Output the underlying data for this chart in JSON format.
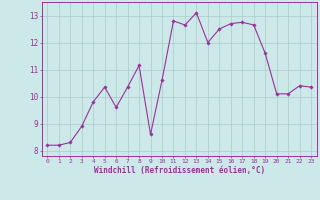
{
  "x": [
    0,
    1,
    2,
    3,
    4,
    5,
    6,
    7,
    8,
    9,
    10,
    11,
    12,
    13,
    14,
    15,
    16,
    17,
    18,
    19,
    20,
    21,
    22,
    23
  ],
  "y": [
    8.2,
    8.2,
    8.3,
    8.9,
    9.8,
    10.35,
    9.6,
    10.35,
    11.15,
    8.6,
    10.6,
    12.8,
    12.65,
    13.1,
    12.0,
    12.5,
    12.7,
    12.75,
    12.65,
    11.6,
    10.1,
    10.1,
    10.4,
    10.35
  ],
  "line_color": "#993399",
  "marker": "D",
  "marker_size": 1.8,
  "bg_color": "#cce8e8",
  "grid_color": "#aacccc",
  "xlabel": "Windchill (Refroidissement éolien,°C)",
  "xlabel_color": "#993399",
  "tick_color": "#993399",
  "label_color": "#993399",
  "ylim": [
    7.8,
    13.5
  ],
  "xlim": [
    -0.5,
    23.5
  ],
  "yticks": [
    8,
    9,
    10,
    11,
    12,
    13
  ],
  "xticks": [
    0,
    1,
    2,
    3,
    4,
    5,
    6,
    7,
    8,
    9,
    10,
    11,
    12,
    13,
    14,
    15,
    16,
    17,
    18,
    19,
    20,
    21,
    22,
    23
  ],
  "spine_color": "#993399",
  "figsize": [
    3.2,
    2.0
  ],
  "dpi": 100
}
